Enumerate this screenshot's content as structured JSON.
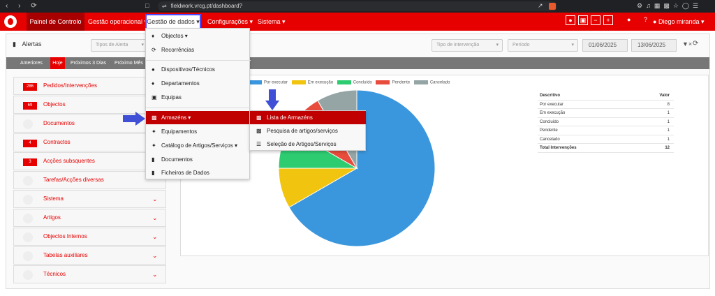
{
  "browser": {
    "url": "fieldwork.vrcg.pt/dashboard?"
  },
  "nav": {
    "items": [
      {
        "label": "Painel de Controlo"
      },
      {
        "label": "Gestão operacional"
      },
      {
        "label": "Gestão de dados"
      },
      {
        "label": "Configurações"
      },
      {
        "label": "Sistema"
      }
    ],
    "user": "Diego miranda"
  },
  "alerts": {
    "title": "Alertas",
    "alert_type_placeholder": "Tipos de Alerta",
    "intervention_type_placeholder": "Tipo de intervenção",
    "period_placeholder": "Período",
    "date_from": "01/06/2025",
    "date_to": "13/06/2025",
    "tabs": [
      "Anteriores",
      "Hoje",
      "Próximos 3 Dias",
      "Próximo Mês"
    ],
    "active_tab": "Hoje"
  },
  "categories": [
    {
      "label": "Pedidos/Intervenções",
      "count": "286"
    },
    {
      "label": "Objectos",
      "count": "69"
    },
    {
      "label": "Documentos",
      "count": ""
    },
    {
      "label": "Contractos",
      "count": "4"
    },
    {
      "label": "Acções subsquentes",
      "count": "3"
    },
    {
      "label": "Tarefas/Acções diversas",
      "count": ""
    },
    {
      "label": "Sistema",
      "count": ""
    },
    {
      "label": "Artigos",
      "count": ""
    },
    {
      "label": "Objectos Internos",
      "count": ""
    },
    {
      "label": "Tabelas auxiliares",
      "count": ""
    },
    {
      "label": "Técnicos",
      "count": ""
    }
  ],
  "dropdown": {
    "items": [
      {
        "label": "Objectos",
        "icon": "cubes-icon"
      },
      {
        "label": "Recorrências",
        "icon": "recurrence-icon"
      },
      {
        "label": "Dispositivos/Técnicos",
        "icon": "person-icon"
      },
      {
        "label": "Departamentos",
        "icon": "cubes-icon"
      },
      {
        "label": "Equipas",
        "icon": "team-icon"
      },
      {
        "label": "Armazéns",
        "icon": "warehouse-icon"
      },
      {
        "label": "Equipamentos",
        "icon": "tools-icon"
      },
      {
        "label": "Catálogo de Artigos/Serviços",
        "icon": "tools-icon"
      },
      {
        "label": "Documentos",
        "icon": "file-icon"
      },
      {
        "label": "Ficheiros de Dados",
        "icon": "file-icon"
      }
    ]
  },
  "submenu": {
    "items": [
      {
        "label": "Lista de Armazéns",
        "icon": "warehouse-icon"
      },
      {
        "label": "Pesquisa de artigos/serviços",
        "icon": "warehouse-search-icon"
      },
      {
        "label": "Seleção de Artigos/Serviços",
        "icon": "select-list-icon"
      }
    ]
  },
  "chart_data": {
    "type": "pie",
    "categories": [
      "Por executar",
      "Em execução",
      "Concluído",
      "Pendente",
      "Cancelado"
    ],
    "values": [
      8,
      1,
      1,
      1,
      1
    ],
    "colors": [
      "#3b97dd",
      "#f1c40f",
      "#2ecc71",
      "#e74c3c",
      "#95a5a6"
    ],
    "legend": "top"
  },
  "table": {
    "header": [
      "Descritivo",
      "Valor"
    ],
    "rows": [
      {
        "label": "Por executar",
        "value": "8"
      },
      {
        "label": "Em execução",
        "value": "1"
      },
      {
        "label": "Concluído",
        "value": "1"
      },
      {
        "label": "Pendente",
        "value": "1"
      },
      {
        "label": "Cancelado",
        "value": "1"
      }
    ],
    "total_label": "Total Intervenções",
    "total_value": "12"
  }
}
